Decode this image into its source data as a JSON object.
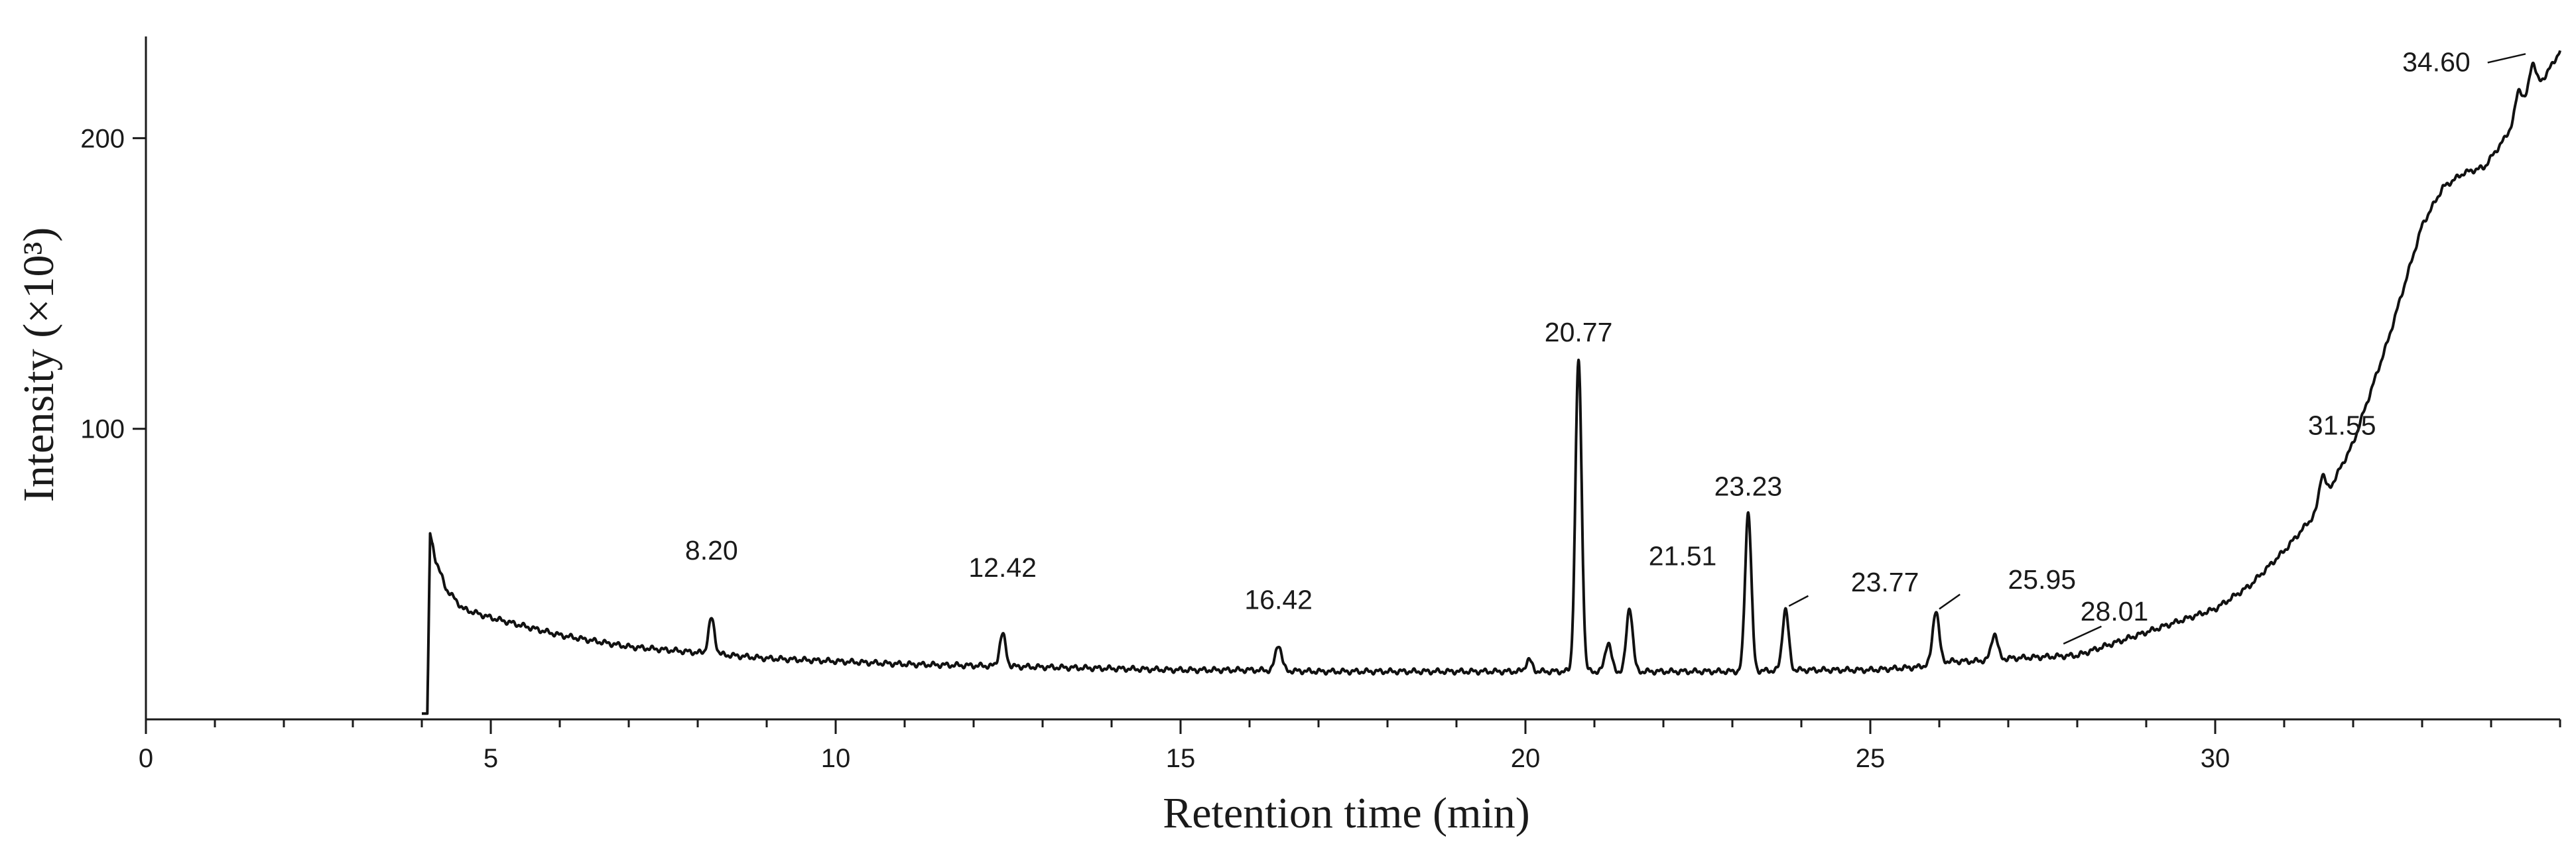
{
  "chart_data": {
    "type": "line",
    "title": "",
    "xlabel": "Retention time (min)",
    "ylabel": "Intensity (×10³)",
    "xlim": [
      0,
      35
    ],
    "ylim": [
      0,
      235
    ],
    "x_major_ticks": [
      0,
      5,
      10,
      15,
      20,
      25,
      30
    ],
    "x_minor_step": 1,
    "y_major_ticks": [
      100,
      200
    ],
    "grid": false,
    "legend": "none",
    "series": [
      {
        "color": "#111111",
        "points": [
          [
            4.0,
            2
          ],
          [
            4.08,
            2
          ],
          [
            4.12,
            64
          ],
          [
            4.2,
            55
          ],
          [
            4.35,
            45
          ],
          [
            4.6,
            38
          ],
          [
            5.0,
            35
          ],
          [
            6.0,
            29
          ],
          [
            7.0,
            25
          ],
          [
            8.0,
            23
          ],
          [
            9.0,
            21
          ],
          [
            10.0,
            20
          ],
          [
            11.0,
            19
          ],
          [
            12.0,
            18.5
          ],
          [
            13.0,
            18
          ],
          [
            14.0,
            17.5
          ],
          [
            15.0,
            17
          ],
          [
            16.0,
            17
          ],
          [
            17.0,
            16.5
          ],
          [
            18.0,
            16.5
          ],
          [
            19.0,
            16.5
          ],
          [
            20.0,
            16.5
          ],
          [
            21.0,
            16.5
          ],
          [
            22.0,
            16.5
          ],
          [
            23.0,
            16.5
          ],
          [
            24.0,
            17
          ],
          [
            25.0,
            17
          ],
          [
            25.7,
            18
          ],
          [
            26.0,
            20
          ],
          [
            26.5,
            20
          ],
          [
            27.0,
            21
          ],
          [
            27.5,
            21.5
          ],
          [
            28.0,
            22
          ],
          [
            28.5,
            26
          ],
          [
            29.0,
            30
          ],
          [
            29.5,
            34
          ],
          [
            30.0,
            38
          ],
          [
            30.5,
            46
          ],
          [
            31.0,
            58
          ],
          [
            31.5,
            72
          ],
          [
            32.0,
            95
          ],
          [
            32.5,
            130
          ],
          [
            33.0,
            170
          ],
          [
            33.3,
            183
          ],
          [
            33.6,
            188
          ],
          [
            33.9,
            190
          ],
          [
            34.2,
            200
          ],
          [
            34.5,
            213
          ],
          [
            34.8,
            222
          ],
          [
            35.0,
            230
          ]
        ],
        "peaks": [
          {
            "x": 8.2,
            "height": 12
          },
          {
            "x": 12.42,
            "height": 11
          },
          {
            "x": 16.42,
            "height": 9
          },
          {
            "x": 20.05,
            "height": 4
          },
          {
            "x": 20.77,
            "height": 107
          },
          {
            "x": 21.2,
            "height": 10
          },
          {
            "x": 21.51,
            "height": 22
          },
          {
            "x": 23.23,
            "height": 55
          },
          {
            "x": 23.77,
            "height": 21
          },
          {
            "x": 25.95,
            "height": 18
          },
          {
            "x": 26.8,
            "height": 9
          },
          {
            "x": 31.55,
            "height": 10
          },
          {
            "x": 34.4,
            "height": 8
          },
          {
            "x": 34.6,
            "height": 10
          }
        ]
      }
    ],
    "annotations": [
      "8.20",
      "12.42",
      "16.42",
      "20.77",
      "21.51",
      "23.23",
      "23.77",
      "25.95",
      "28.01",
      "31.55",
      "34.60"
    ]
  }
}
